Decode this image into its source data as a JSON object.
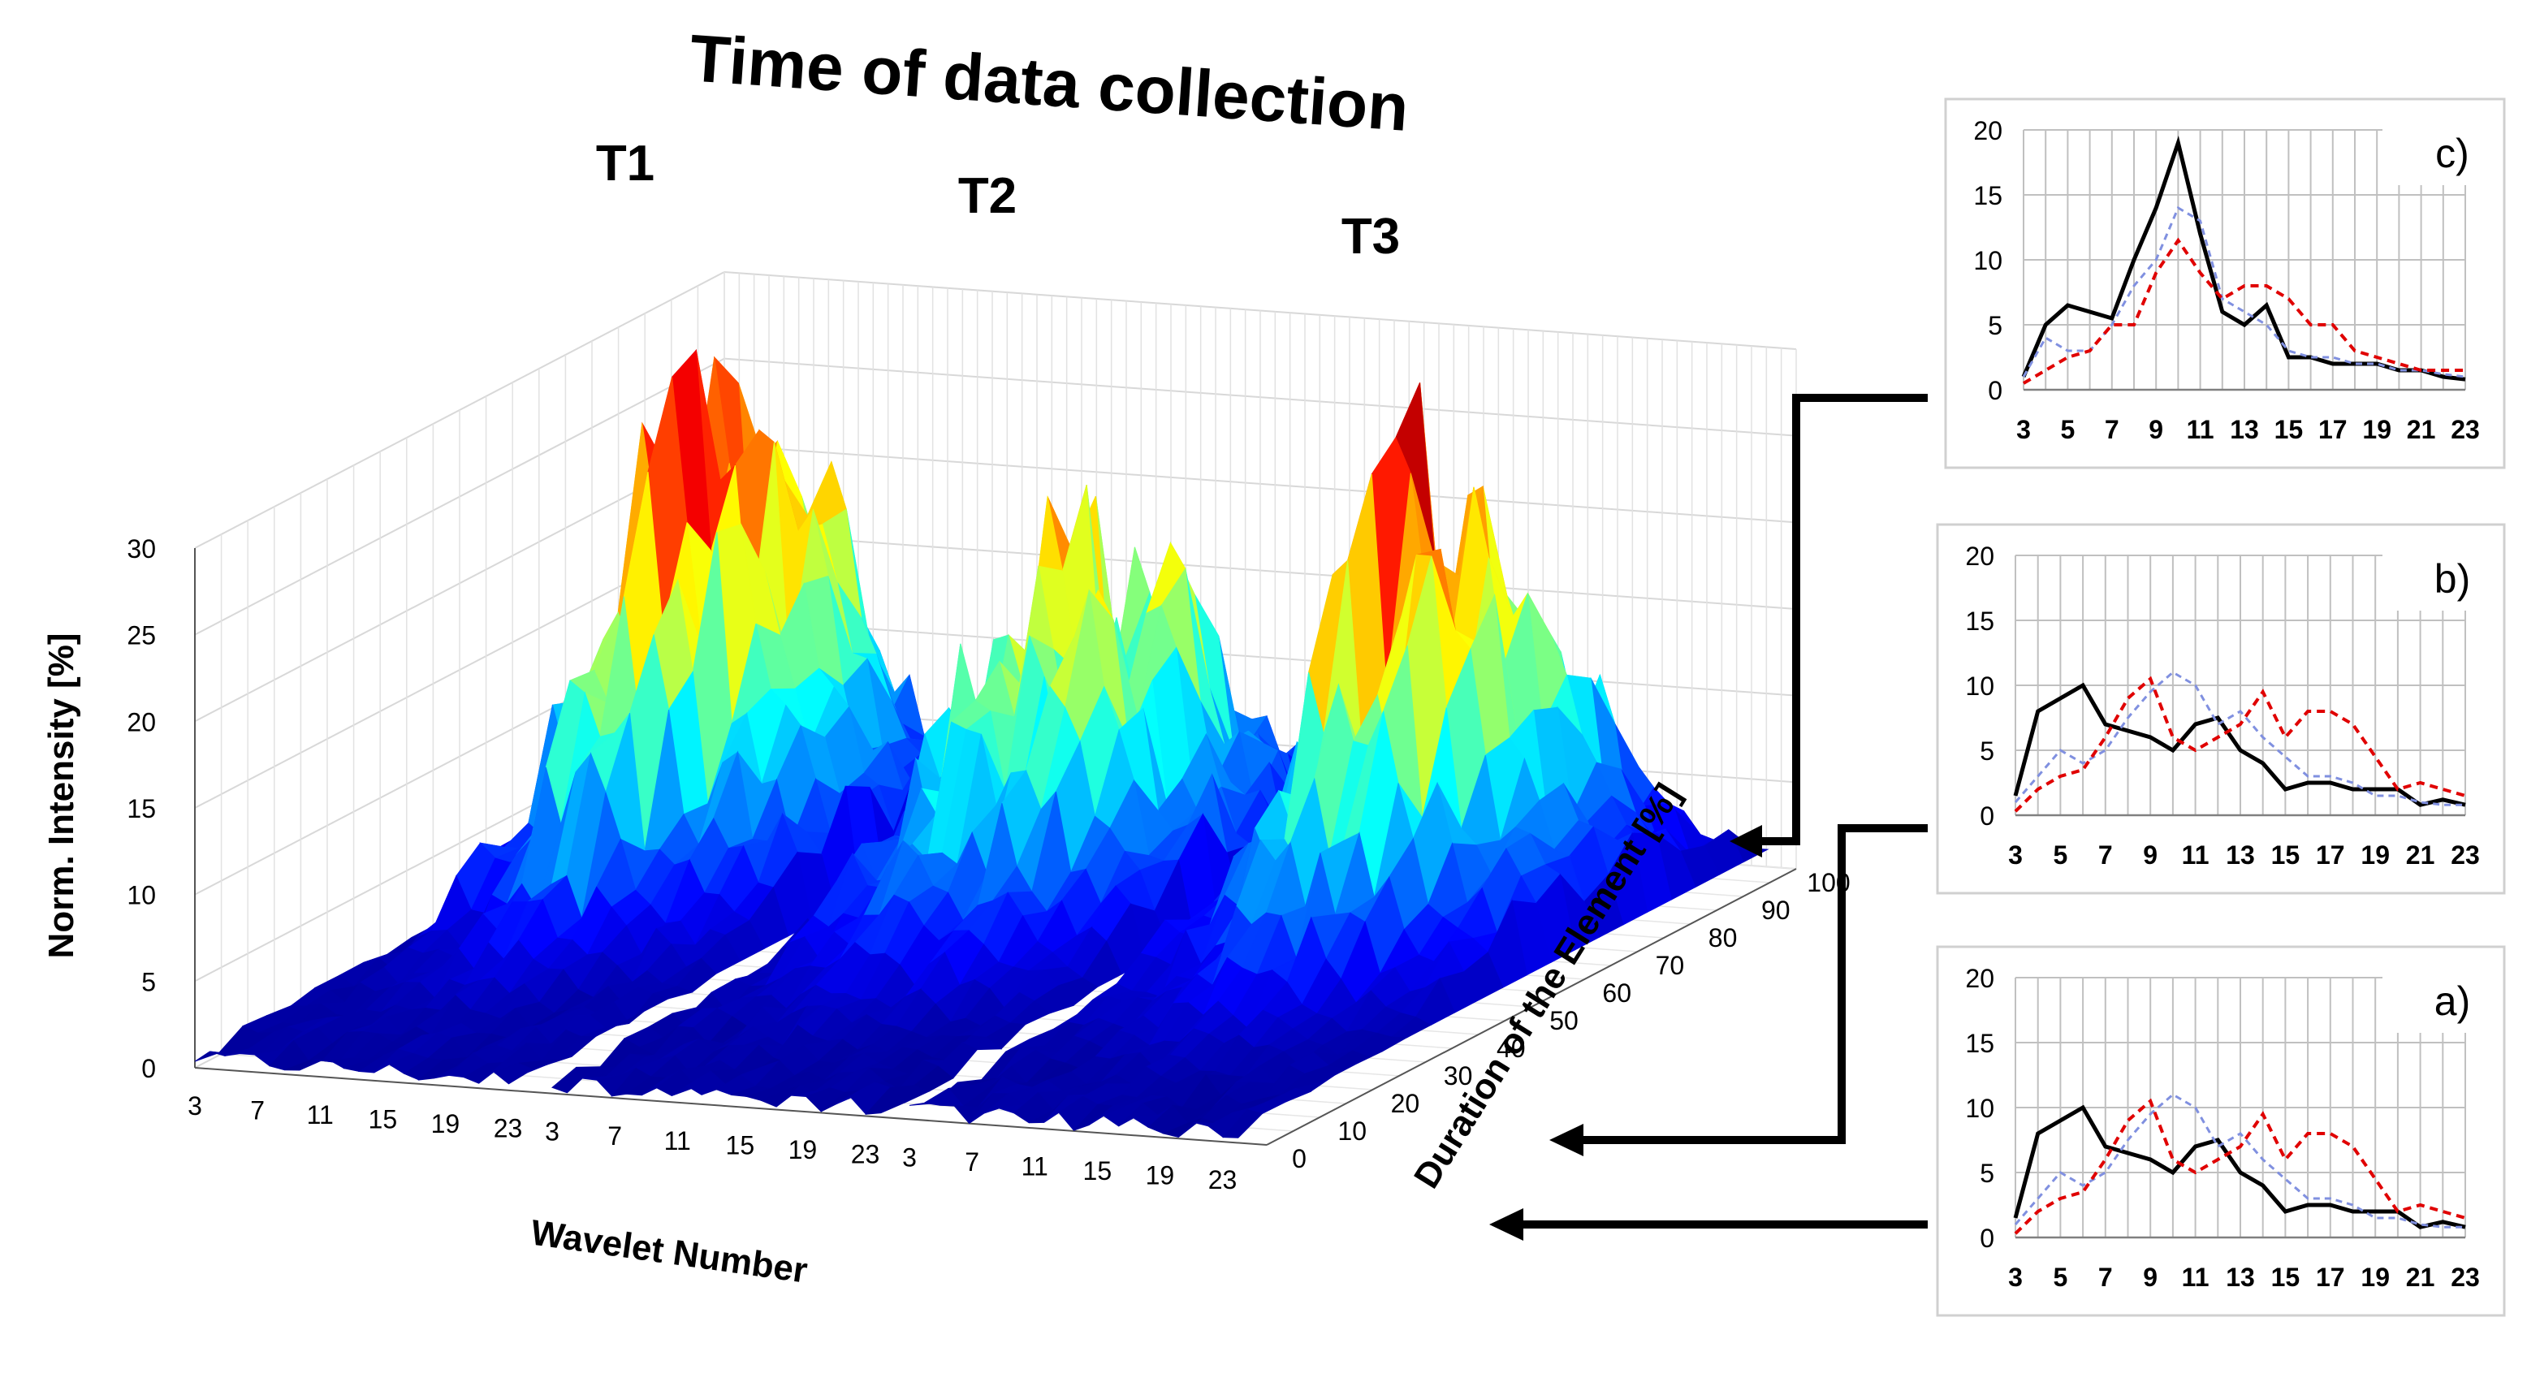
{
  "chart_data": [
    {
      "type": "surface",
      "title": "Time of data collection",
      "blocks": [
        {
          "label": "T1",
          "x_ticks": [
            "3",
            "7",
            "11",
            "15",
            "19",
            "23"
          ],
          "profile_peak": [
            [
              3,
              3
            ],
            [
              5,
              4
            ],
            [
              6,
              12
            ],
            [
              7,
              8
            ],
            [
              8,
              10
            ],
            [
              9,
              12
            ],
            [
              10,
              18
            ],
            [
              11,
              26
            ],
            [
              12,
              30
            ],
            [
              13,
              28
            ],
            [
              14,
              32
            ],
            [
              15,
              28
            ],
            [
              16,
              24
            ],
            [
              17,
              18
            ],
            [
              18,
              14
            ],
            [
              19,
              12
            ],
            [
              20,
              10
            ],
            [
              21,
              8
            ],
            [
              22,
              7
            ],
            [
              23,
              6
            ],
            [
              24,
              5
            ]
          ]
        },
        {
          "label": "T2",
          "x_ticks": [
            "3",
            "7",
            "11",
            "15",
            "19",
            "23"
          ],
          "profile_peak": [
            [
              3,
              4
            ],
            [
              5,
              6
            ],
            [
              6,
              10
            ],
            [
              7,
              11
            ],
            [
              8,
              12
            ],
            [
              9,
              14
            ],
            [
              10,
              18
            ],
            [
              11,
              20
            ],
            [
              12,
              24
            ],
            [
              13,
              20
            ],
            [
              14,
              18
            ],
            [
              15,
              16
            ],
            [
              16,
              18
            ],
            [
              17,
              22
            ],
            [
              18,
              16
            ],
            [
              19,
              12
            ],
            [
              20,
              10
            ],
            [
              21,
              8
            ],
            [
              22,
              7
            ],
            [
              23,
              6
            ],
            [
              24,
              5
            ]
          ]
        },
        {
          "label": "T3",
          "x_ticks": [
            "3",
            "7",
            "11",
            "15",
            "19",
            "23"
          ],
          "profile_peak": [
            [
              3,
              5
            ],
            [
              5,
              7
            ],
            [
              6,
              8
            ],
            [
              7,
              10
            ],
            [
              8,
              12
            ],
            [
              9,
              14
            ],
            [
              10,
              18
            ],
            [
              11,
              28
            ],
            [
              12,
              26
            ],
            [
              13,
              30
            ],
            [
              14,
              24
            ],
            [
              15,
              22
            ],
            [
              16,
              26
            ],
            [
              17,
              20
            ],
            [
              18,
              14
            ],
            [
              19,
              10
            ],
            [
              20,
              8
            ],
            [
              21,
              7
            ],
            [
              22,
              6
            ],
            [
              23,
              5
            ],
            [
              24,
              4
            ]
          ]
        }
      ],
      "axes": {
        "z_label": "Norm. Intensity [%]",
        "z_ticks": [
          "0",
          "5",
          "10",
          "15",
          "20",
          "25",
          "30"
        ],
        "x_label": "Wavelet Number",
        "y_label": "Duration of the Element [%]",
        "y_ticks": [
          "0",
          "10",
          "20",
          "30",
          "40",
          "50",
          "60",
          "70",
          "80",
          "90",
          "100"
        ]
      },
      "colormap": [
        "#00008f",
        "#0000ff",
        "#0080ff",
        "#00ffff",
        "#80ff80",
        "#ffff00",
        "#ff8000",
        "#ff0000",
        "#800000"
      ]
    },
    {
      "type": "line",
      "panel": "c)",
      "categories": [
        3,
        4,
        5,
        6,
        7,
        8,
        9,
        10,
        11,
        12,
        13,
        14,
        15,
        16,
        17,
        18,
        19,
        20,
        21,
        22,
        23
      ],
      "x_tick_labels": [
        "3",
        "5",
        "7",
        "9",
        "11",
        "13",
        "15",
        "17",
        "19",
        "21",
        "23"
      ],
      "ylim": [
        0,
        20
      ],
      "y_ticks": [
        "0",
        "5",
        "10",
        "15",
        "20"
      ],
      "series": [
        {
          "color": "#000000",
          "style": "solid",
          "values": [
            1,
            5,
            6.5,
            6,
            5.5,
            10,
            14,
            19,
            12,
            6,
            5,
            6.5,
            2.5,
            2.5,
            2,
            2,
            2,
            1.5,
            1.5,
            1,
            0.8
          ]
        },
        {
          "color": "#8090e0",
          "style": "dash-thin",
          "values": [
            1,
            4,
            3,
            3,
            5,
            8,
            10,
            14,
            13,
            7,
            6,
            5,
            3,
            2.5,
            2.5,
            2,
            2,
            1.5,
            1.5,
            1.2,
            1
          ]
        },
        {
          "color": "#e00000",
          "style": "dash",
          "values": [
            0.5,
            1.5,
            2.5,
            3,
            5,
            5,
            9,
            11.5,
            9,
            7,
            8,
            8,
            7,
            5,
            5,
            3,
            2.5,
            2,
            1.5,
            1.5,
            1.5
          ]
        }
      ]
    },
    {
      "type": "line",
      "panel": "b)",
      "categories": [
        3,
        4,
        5,
        6,
        7,
        8,
        9,
        10,
        11,
        12,
        13,
        14,
        15,
        16,
        17,
        18,
        19,
        20,
        21,
        22,
        23
      ],
      "x_tick_labels": [
        "3",
        "5",
        "7",
        "9",
        "11",
        "13",
        "15",
        "17",
        "19",
        "21",
        "23"
      ],
      "ylim": [
        0,
        20
      ],
      "y_ticks": [
        "0",
        "5",
        "10",
        "15",
        "20"
      ],
      "series": [
        {
          "color": "#000000",
          "style": "solid",
          "values": [
            1.5,
            8,
            9,
            10,
            7,
            6.5,
            6,
            5,
            7,
            7.5,
            5,
            4,
            2,
            2.5,
            2.5,
            2,
            2,
            2,
            0.8,
            1.2,
            0.8
          ]
        },
        {
          "color": "#8090e0",
          "style": "dash-thin",
          "values": [
            1,
            3,
            5,
            4,
            5,
            7.5,
            9.5,
            11,
            10,
            7,
            8,
            6,
            4.5,
            3,
            3,
            2.5,
            1.5,
            1.5,
            1,
            0.8,
            0.8
          ]
        },
        {
          "color": "#e00000",
          "style": "dash",
          "values": [
            0.3,
            2,
            3,
            3.5,
            6,
            9,
            10.5,
            6,
            5,
            6,
            7,
            9.5,
            6,
            8,
            8,
            7,
            4.5,
            2,
            2.5,
            2,
            1.5
          ]
        }
      ]
    },
    {
      "type": "line",
      "panel": "a)",
      "categories": [
        3,
        4,
        5,
        6,
        7,
        8,
        9,
        10,
        11,
        12,
        13,
        14,
        15,
        16,
        17,
        18,
        19,
        20,
        21,
        22,
        23
      ],
      "x_tick_labels": [
        "3",
        "5",
        "7",
        "9",
        "11",
        "13",
        "15",
        "17",
        "19",
        "21",
        "23"
      ],
      "ylim": [
        0,
        20
      ],
      "y_ticks": [
        "0",
        "5",
        "10",
        "15",
        "20"
      ],
      "series": [
        {
          "color": "#000000",
          "style": "solid",
          "values": [
            1.5,
            8,
            9,
            10,
            7,
            6.5,
            6,
            5,
            7,
            7.5,
            5,
            4,
            2,
            2.5,
            2.5,
            2,
            2,
            2,
            0.8,
            1.2,
            0.8
          ]
        },
        {
          "color": "#8090e0",
          "style": "dash-thin",
          "values": [
            1,
            3,
            5,
            4,
            5,
            7.5,
            9.5,
            11,
            10,
            7,
            8,
            6,
            4.5,
            3,
            3,
            2.5,
            1.5,
            1.5,
            1,
            0.8,
            0.8
          ]
        },
        {
          "color": "#e00000",
          "style": "dash",
          "values": [
            0.3,
            2,
            3,
            3.5,
            6,
            9,
            10.5,
            6,
            5,
            6,
            7,
            9.5,
            6,
            8,
            8,
            7,
            4.5,
            2,
            2.5,
            2,
            1.5
          ]
        }
      ]
    }
  ]
}
